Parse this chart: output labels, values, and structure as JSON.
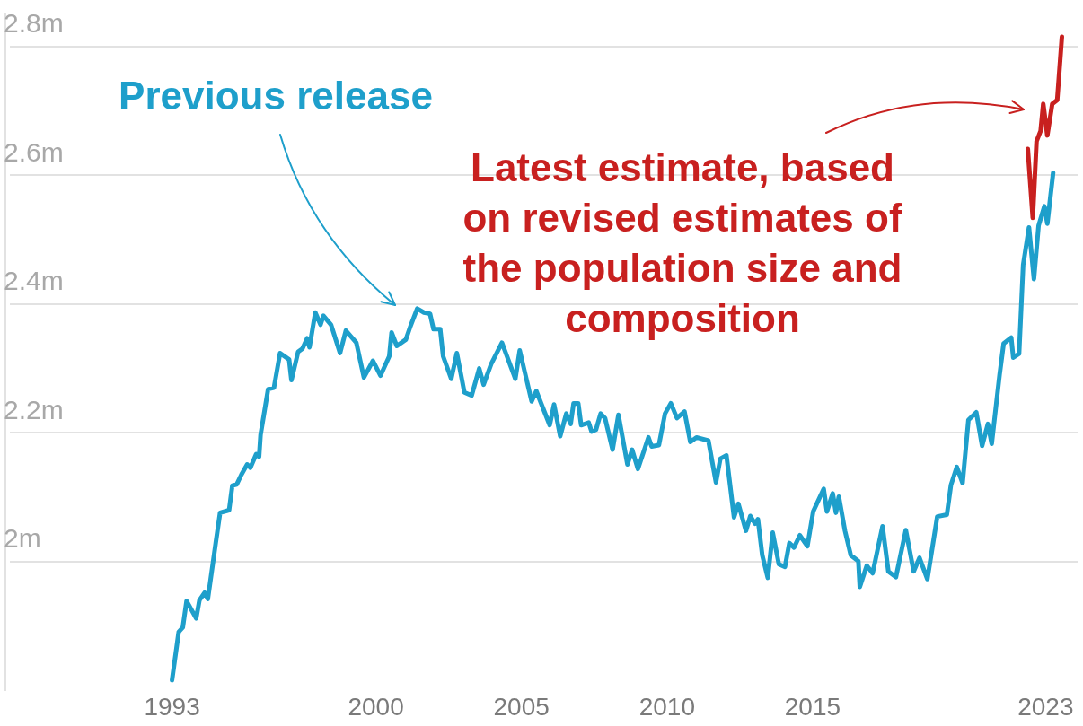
{
  "chart_data": {
    "type": "line",
    "series": [
      {
        "color": "#1e9fcb",
        "x": [
          1993.0,
          1993.23,
          1993.37,
          1993.5,
          1993.83,
          1993.94,
          1994.12,
          1994.23,
          1994.5,
          1994.65,
          1994.96,
          1995.07,
          1995.22,
          1995.38,
          1995.58,
          1995.69,
          1995.89,
          1995.99,
          1996.04,
          1996.3,
          1996.5,
          1996.71,
          1997.02,
          1997.1,
          1997.33,
          1997.48,
          1997.64,
          1997.72,
          1997.92,
          1998.1,
          1998.2,
          1998.46,
          1998.77,
          1998.97,
          1999.33,
          1999.59,
          1999.9,
          2000.16,
          2000.46,
          2000.54,
          2000.72,
          2001.03,
          2001.19,
          2001.42,
          2001.65,
          2001.86,
          2001.98,
          2002.21,
          2002.31,
          2002.59,
          2002.78,
          2003.04,
          2003.29,
          2003.55,
          2003.7,
          2003.96,
          2004.33,
          2004.79,
          2004.94,
          2005.35,
          2005.51,
          2005.97,
          2006.12,
          2006.33,
          2006.54,
          2006.69,
          2006.79,
          2006.95,
          2007.05,
          2007.31,
          2007.41,
          2007.56,
          2007.72,
          2007.87,
          2008.13,
          2008.33,
          2008.64,
          2008.8,
          2009.0,
          2009.36,
          2009.47,
          2009.72,
          2009.93,
          2010.13,
          2010.34,
          2010.6,
          2010.8,
          2011.01,
          2011.42,
          2011.68,
          2011.83,
          2012.04,
          2012.3,
          2012.45,
          2012.71,
          2012.86,
          2013.02,
          2013.12,
          2013.27,
          2013.46,
          2013.63,
          2013.84,
          2014.05,
          2014.2,
          2014.36,
          2014.56,
          2014.82,
          2015.02,
          2015.38,
          2015.49,
          2015.69,
          2015.8,
          2015.9,
          2016.11,
          2016.31,
          2016.57,
          2016.62,
          2016.86,
          2017.06,
          2017.4,
          2017.6,
          2017.86,
          2018.2,
          2018.47,
          2018.67,
          2018.94,
          2019.28,
          2019.61,
          2019.75,
          2019.95,
          2020.15,
          2020.35,
          2020.62,
          2020.82,
          2021.02,
          2021.15,
          2021.42,
          2021.56,
          2021.82,
          2021.89,
          2022.09,
          2022.23,
          2022.43,
          2022.6,
          2022.76,
          2022.96,
          2023.06,
          2023.26
        ],
        "values": [
          1.816,
          1.891,
          1.898,
          1.939,
          1.912,
          1.94,
          1.952,
          1.942,
          2.029,
          2.076,
          2.08,
          2.118,
          2.12,
          2.135,
          2.151,
          2.146,
          2.167,
          2.163,
          2.197,
          2.268,
          2.27,
          2.324,
          2.314,
          2.282,
          2.326,
          2.331,
          2.347,
          2.333,
          2.387,
          2.368,
          2.382,
          2.368,
          2.324,
          2.359,
          2.34,
          2.286,
          2.312,
          2.289,
          2.319,
          2.356,
          2.335,
          2.345,
          2.366,
          2.393,
          2.387,
          2.385,
          2.361,
          2.361,
          2.319,
          2.284,
          2.324,
          2.263,
          2.258,
          2.3,
          2.275,
          2.307,
          2.34,
          2.284,
          2.328,
          2.249,
          2.265,
          2.212,
          2.244,
          2.195,
          2.23,
          2.214,
          2.246,
          2.246,
          2.212,
          2.216,
          2.202,
          2.205,
          2.23,
          2.223,
          2.174,
          2.228,
          2.151,
          2.174,
          2.144,
          2.193,
          2.179,
          2.181,
          2.23,
          2.246,
          2.223,
          2.233,
          2.186,
          2.193,
          2.188,
          2.123,
          2.16,
          2.165,
          2.069,
          2.09,
          2.048,
          2.071,
          2.059,
          2.066,
          2.01,
          1.975,
          2.045,
          1.996,
          1.992,
          2.029,
          2.022,
          2.041,
          2.024,
          2.078,
          2.113,
          2.078,
          2.106,
          2.076,
          2.101,
          2.048,
          2.01,
          2.001,
          1.961,
          1.994,
          1.982,
          2.055,
          1.985,
          1.976,
          2.049,
          1.985,
          2.006,
          1.973,
          2.07,
          2.073,
          2.119,
          2.147,
          2.122,
          2.22,
          2.232,
          2.18,
          2.214,
          2.183,
          2.29,
          2.339,
          2.348,
          2.317,
          2.323,
          2.461,
          2.519,
          2.439,
          2.522,
          2.552,
          2.525,
          2.604
        ]
      },
      {
        "color": "#c8201f",
        "x": [
          2022.39,
          2022.56,
          2022.69,
          2022.83,
          2022.92,
          2023.06,
          2023.23,
          2023.4,
          2023.56
        ],
        "values": [
          2.641,
          2.534,
          2.653,
          2.669,
          2.711,
          2.662,
          2.711,
          2.717,
          2.815
        ]
      }
    ],
    "xlim": [
      1987.4,
      2024.1
    ],
    "xticks": [
      1993,
      2000,
      2005,
      2010,
      2015,
      2023
    ],
    "ylim": [
      1.8,
      2.85
    ],
    "yticks": [
      {
        "value": 2.0,
        "label": "2m"
      },
      {
        "value": 2.2,
        "label": "2.2m"
      },
      {
        "value": 2.4,
        "label": "2.4m"
      },
      {
        "value": 2.6,
        "label": "2.6m"
      },
      {
        "value": 2.8,
        "label": "2.8m"
      }
    ],
    "grid": "y",
    "legend": false,
    "marker": "none",
    "line_style": "solid",
    "annotations": [
      "Previous release",
      "Latest estimate, based on revised estimates of the population size and composition"
    ]
  }
}
